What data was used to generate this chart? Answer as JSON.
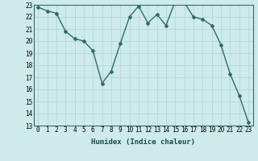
{
  "xlabel": "Humidex (Indice chaleur)",
  "x": [
    0,
    1,
    2,
    3,
    4,
    5,
    6,
    7,
    8,
    9,
    10,
    11,
    12,
    13,
    14,
    15,
    16,
    17,
    18,
    19,
    20,
    21,
    22,
    23
  ],
  "y": [
    22.8,
    22.5,
    22.3,
    20.8,
    20.2,
    20.0,
    19.2,
    16.5,
    17.5,
    19.8,
    22.0,
    22.9,
    21.5,
    22.2,
    21.3,
    23.3,
    23.2,
    22.0,
    21.8,
    21.3,
    19.7,
    17.3,
    15.5,
    13.3
  ],
  "line_color": "#2e6b6b",
  "marker": "D",
  "marker_size": 2.0,
  "bg_color": "#ceeaea",
  "grid_color": "#afd4d4",
  "ylim": [
    13,
    23
  ],
  "yticks": [
    13,
    14,
    15,
    16,
    17,
    18,
    19,
    20,
    21,
    22,
    23
  ],
  "xticks": [
    0,
    1,
    2,
    3,
    4,
    5,
    6,
    7,
    8,
    9,
    10,
    11,
    12,
    13,
    14,
    15,
    16,
    17,
    18,
    19,
    20,
    21,
    22,
    23
  ],
  "tick_fontsize": 5.5,
  "xlabel_fontsize": 6.5,
  "line_width": 1.0
}
